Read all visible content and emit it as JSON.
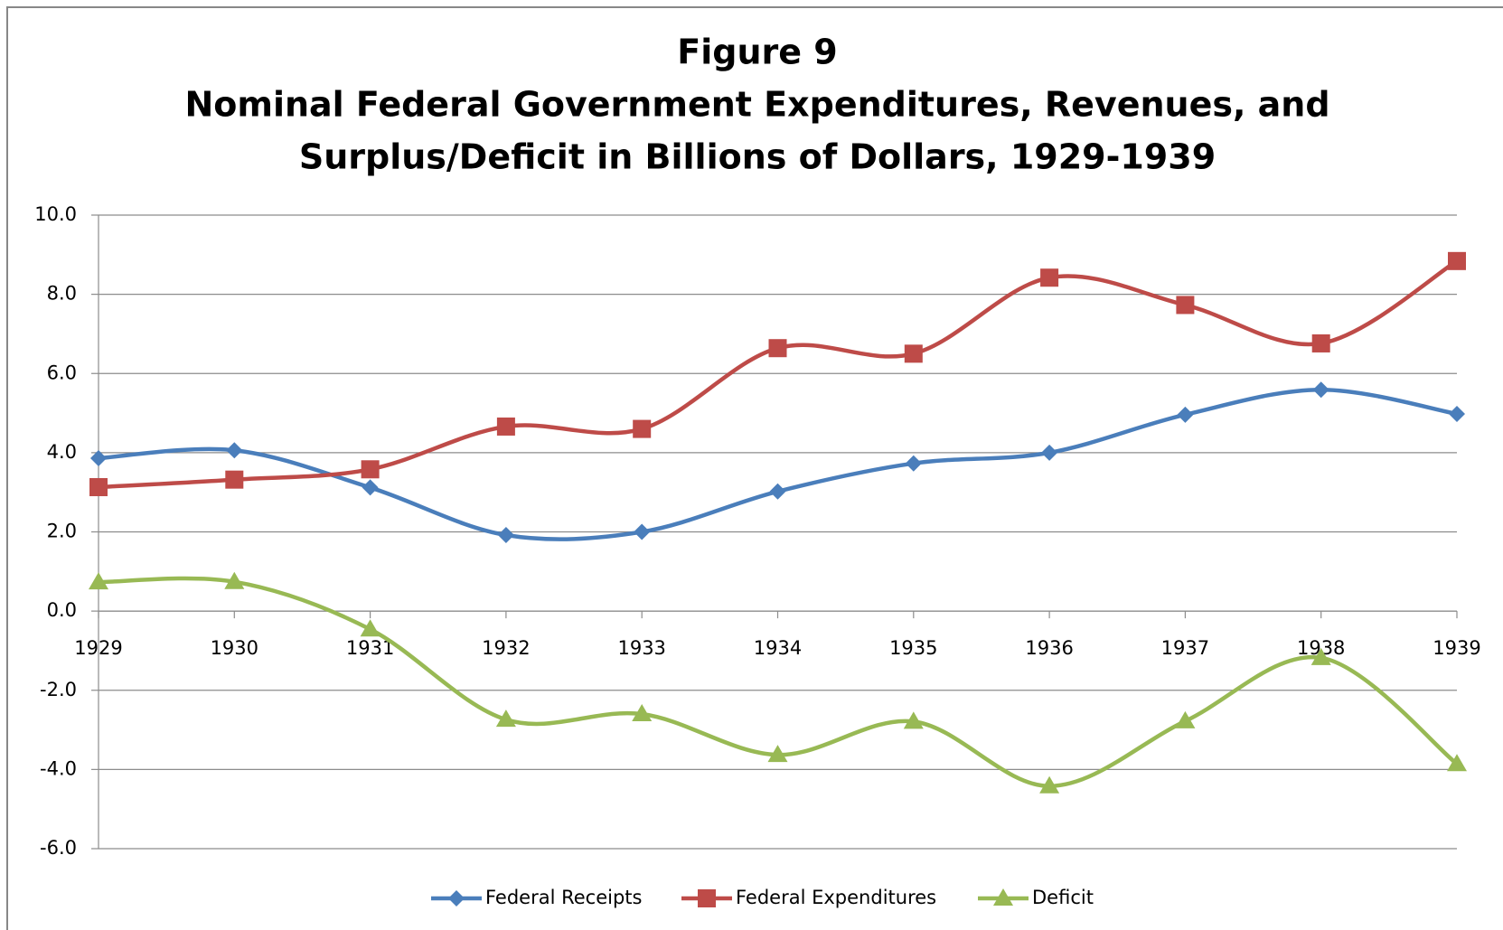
{
  "chart_data": {
    "type": "line",
    "title": "Figure 9",
    "subtitle": [
      "Nominal Federal Government Expenditures, Revenues, and",
      "Surplus/Deficit in Billions of Dollars, 1929-1939"
    ],
    "categories": [
      "1929",
      "1930",
      "1931",
      "1932",
      "1933",
      "1934",
      "1935",
      "1936",
      "1937",
      "1938",
      "1939"
    ],
    "series": [
      {
        "name": "Federal Receipts",
        "color": "#4a7ebb",
        "marker": "diamond",
        "values": [
          3.86,
          4.06,
          3.12,
          1.92,
          2.0,
          3.02,
          3.73,
          4.0,
          4.96,
          5.59,
          4.98
        ]
      },
      {
        "name": "Federal Expenditures",
        "color": "#be4b48",
        "marker": "square",
        "values": [
          3.13,
          3.32,
          3.58,
          4.66,
          4.6,
          6.64,
          6.5,
          8.42,
          7.73,
          6.76,
          8.84
        ]
      },
      {
        "name": "Deficit",
        "color": "#98b954",
        "marker": "triangle",
        "values": [
          0.73,
          0.74,
          -0.46,
          -2.74,
          -2.6,
          -3.63,
          -2.79,
          -4.42,
          -2.78,
          -1.18,
          -3.86
        ]
      }
    ],
    "ylim": [
      -6,
      10
    ],
    "yticks": [
      {
        "value": -6,
        "label": "-6.0"
      },
      {
        "value": -4,
        "label": "-4.0"
      },
      {
        "value": -2,
        "label": "-2.0"
      },
      {
        "value": 0,
        "label": "0.0"
      },
      {
        "value": 2,
        "label": "2.0"
      },
      {
        "value": 4,
        "label": "4.0"
      },
      {
        "value": 6,
        "label": "6.0"
      },
      {
        "value": 8,
        "label": "8.0"
      },
      {
        "value": 10,
        "label": "10.0"
      }
    ],
    "grid": true,
    "smooth": true,
    "legend": "bottom"
  }
}
